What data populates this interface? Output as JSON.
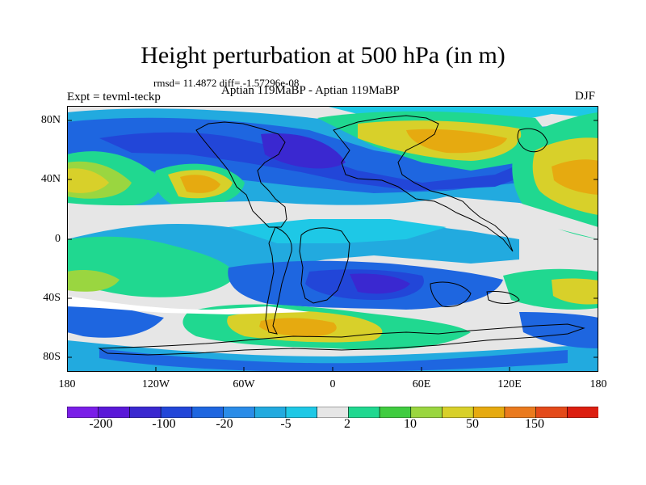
{
  "title": "Height perturbation at 500 hPa (in m)",
  "stats": "rmsd= 11.4872 diff= -1.57296e-08",
  "expt": "Expt = tevml-teckp",
  "period": "Aptian   119MaBP - Aptian   119MaBP",
  "season": "DJF",
  "y_ticks": [
    "80N",
    "40N",
    "0",
    "40S",
    "80S"
  ],
  "x_ticks": [
    "180",
    "120W",
    "60W",
    "0",
    "60E",
    "120E",
    "180"
  ],
  "colorbar_labels": [
    "-200",
    "-100",
    "-20",
    "-5",
    "2",
    "10",
    "50",
    "150"
  ],
  "colors": [
    "#7a1ee8",
    "#5a18d8",
    "#3a28d0",
    "#2246d8",
    "#1e66e0",
    "#2a8ce8",
    "#22aadf",
    "#1ec8e6",
    "#e6e6e6",
    "#20d890",
    "#40cc40",
    "#9ad640",
    "#d8d02a",
    "#e6aa10",
    "#ea7a1e",
    "#e44a1a",
    "#dc1e10"
  ]
}
